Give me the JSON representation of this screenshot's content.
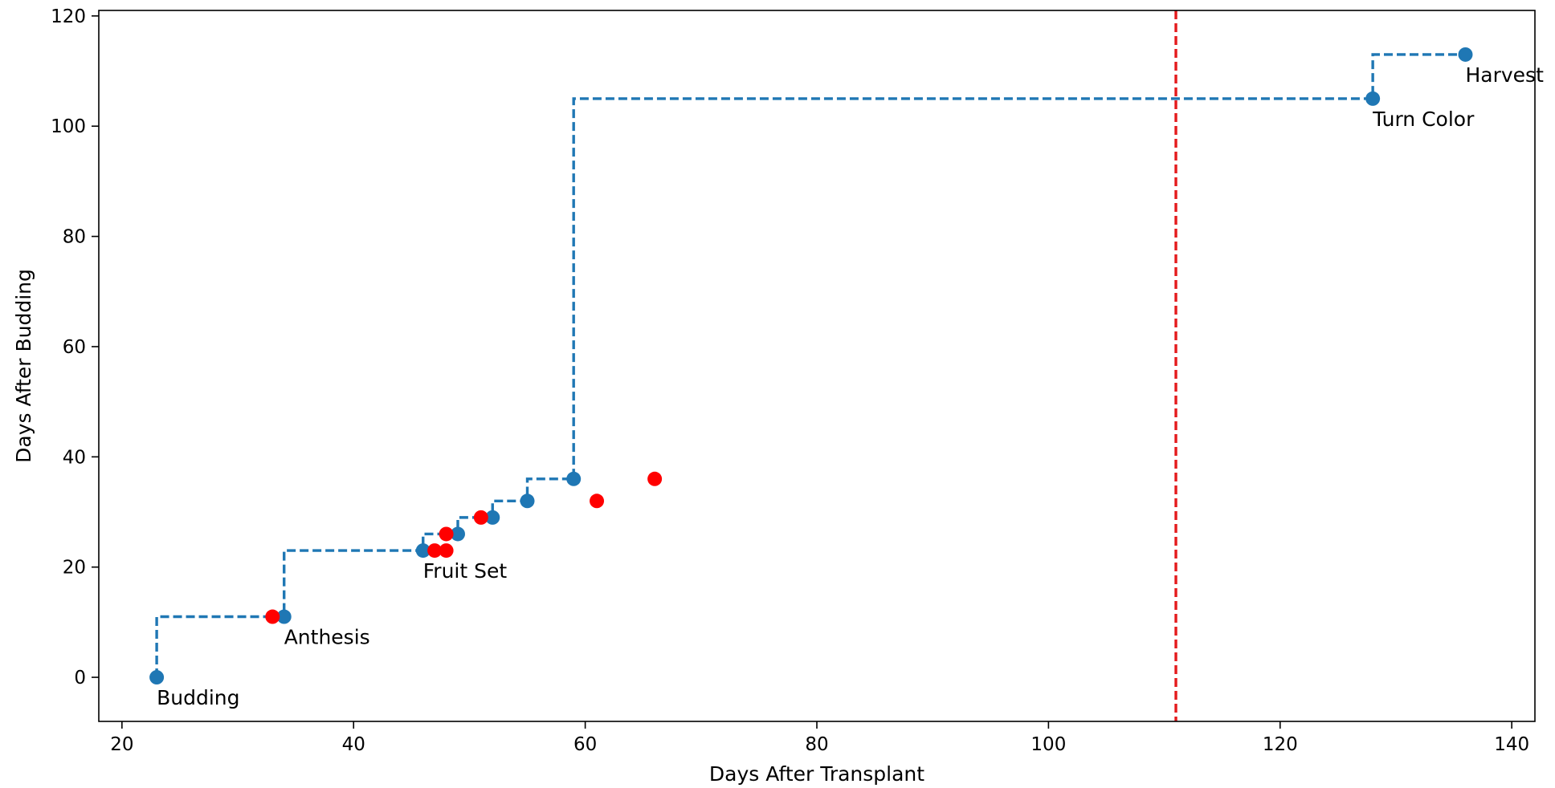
{
  "chart_data": {
    "type": "line",
    "title": "",
    "xlabel": "Days After Transplant",
    "ylabel": "Days After Budding",
    "xlim": [
      18,
      142
    ],
    "ylim": [
      -8,
      121
    ],
    "xticks": [
      20,
      40,
      60,
      80,
      100,
      120,
      140
    ],
    "yticks": [
      0,
      20,
      40,
      60,
      80,
      100,
      120
    ],
    "grid": false,
    "legend": null,
    "colors": {
      "stage": "#1f77b4",
      "observed": "#ff0000",
      "reference": "#e41a1c"
    },
    "series": [
      {
        "style": "dashed step with dot markers",
        "color": "#1f77b4",
        "points": [
          {
            "x": 23,
            "y": 0
          },
          {
            "x": 34,
            "y": 11
          },
          {
            "x": 46,
            "y": 23
          },
          {
            "x": 49,
            "y": 26
          },
          {
            "x": 52,
            "y": 29
          },
          {
            "x": 55,
            "y": 32
          },
          {
            "x": 59,
            "y": 36
          },
          {
            "x": 128,
            "y": 105
          },
          {
            "x": 136,
            "y": 113
          }
        ]
      },
      {
        "style": "scatter",
        "color": "#ff0000",
        "points": [
          {
            "x": 33,
            "y": 11
          },
          {
            "x": 47,
            "y": 23
          },
          {
            "x": 48,
            "y": 23
          },
          {
            "x": 48,
            "y": 26
          },
          {
            "x": 51,
            "y": 29
          },
          {
            "x": 61,
            "y": 32
          },
          {
            "x": 66,
            "y": 36
          }
        ]
      }
    ],
    "annotations": [
      {
        "text": "Budding",
        "x": 23,
        "y": 0
      },
      {
        "text": "Anthesis",
        "x": 34,
        "y": 11
      },
      {
        "text": "Fruit Set",
        "x": 46,
        "y": 23
      },
      {
        "text": "Turn Color",
        "x": 128,
        "y": 105
      },
      {
        "text": "Harvest",
        "x": 136,
        "y": 113
      }
    ],
    "reference_lines": [
      {
        "orientation": "vertical",
        "x": 111,
        "style": "dashed",
        "color": "#e41a1c"
      }
    ]
  }
}
